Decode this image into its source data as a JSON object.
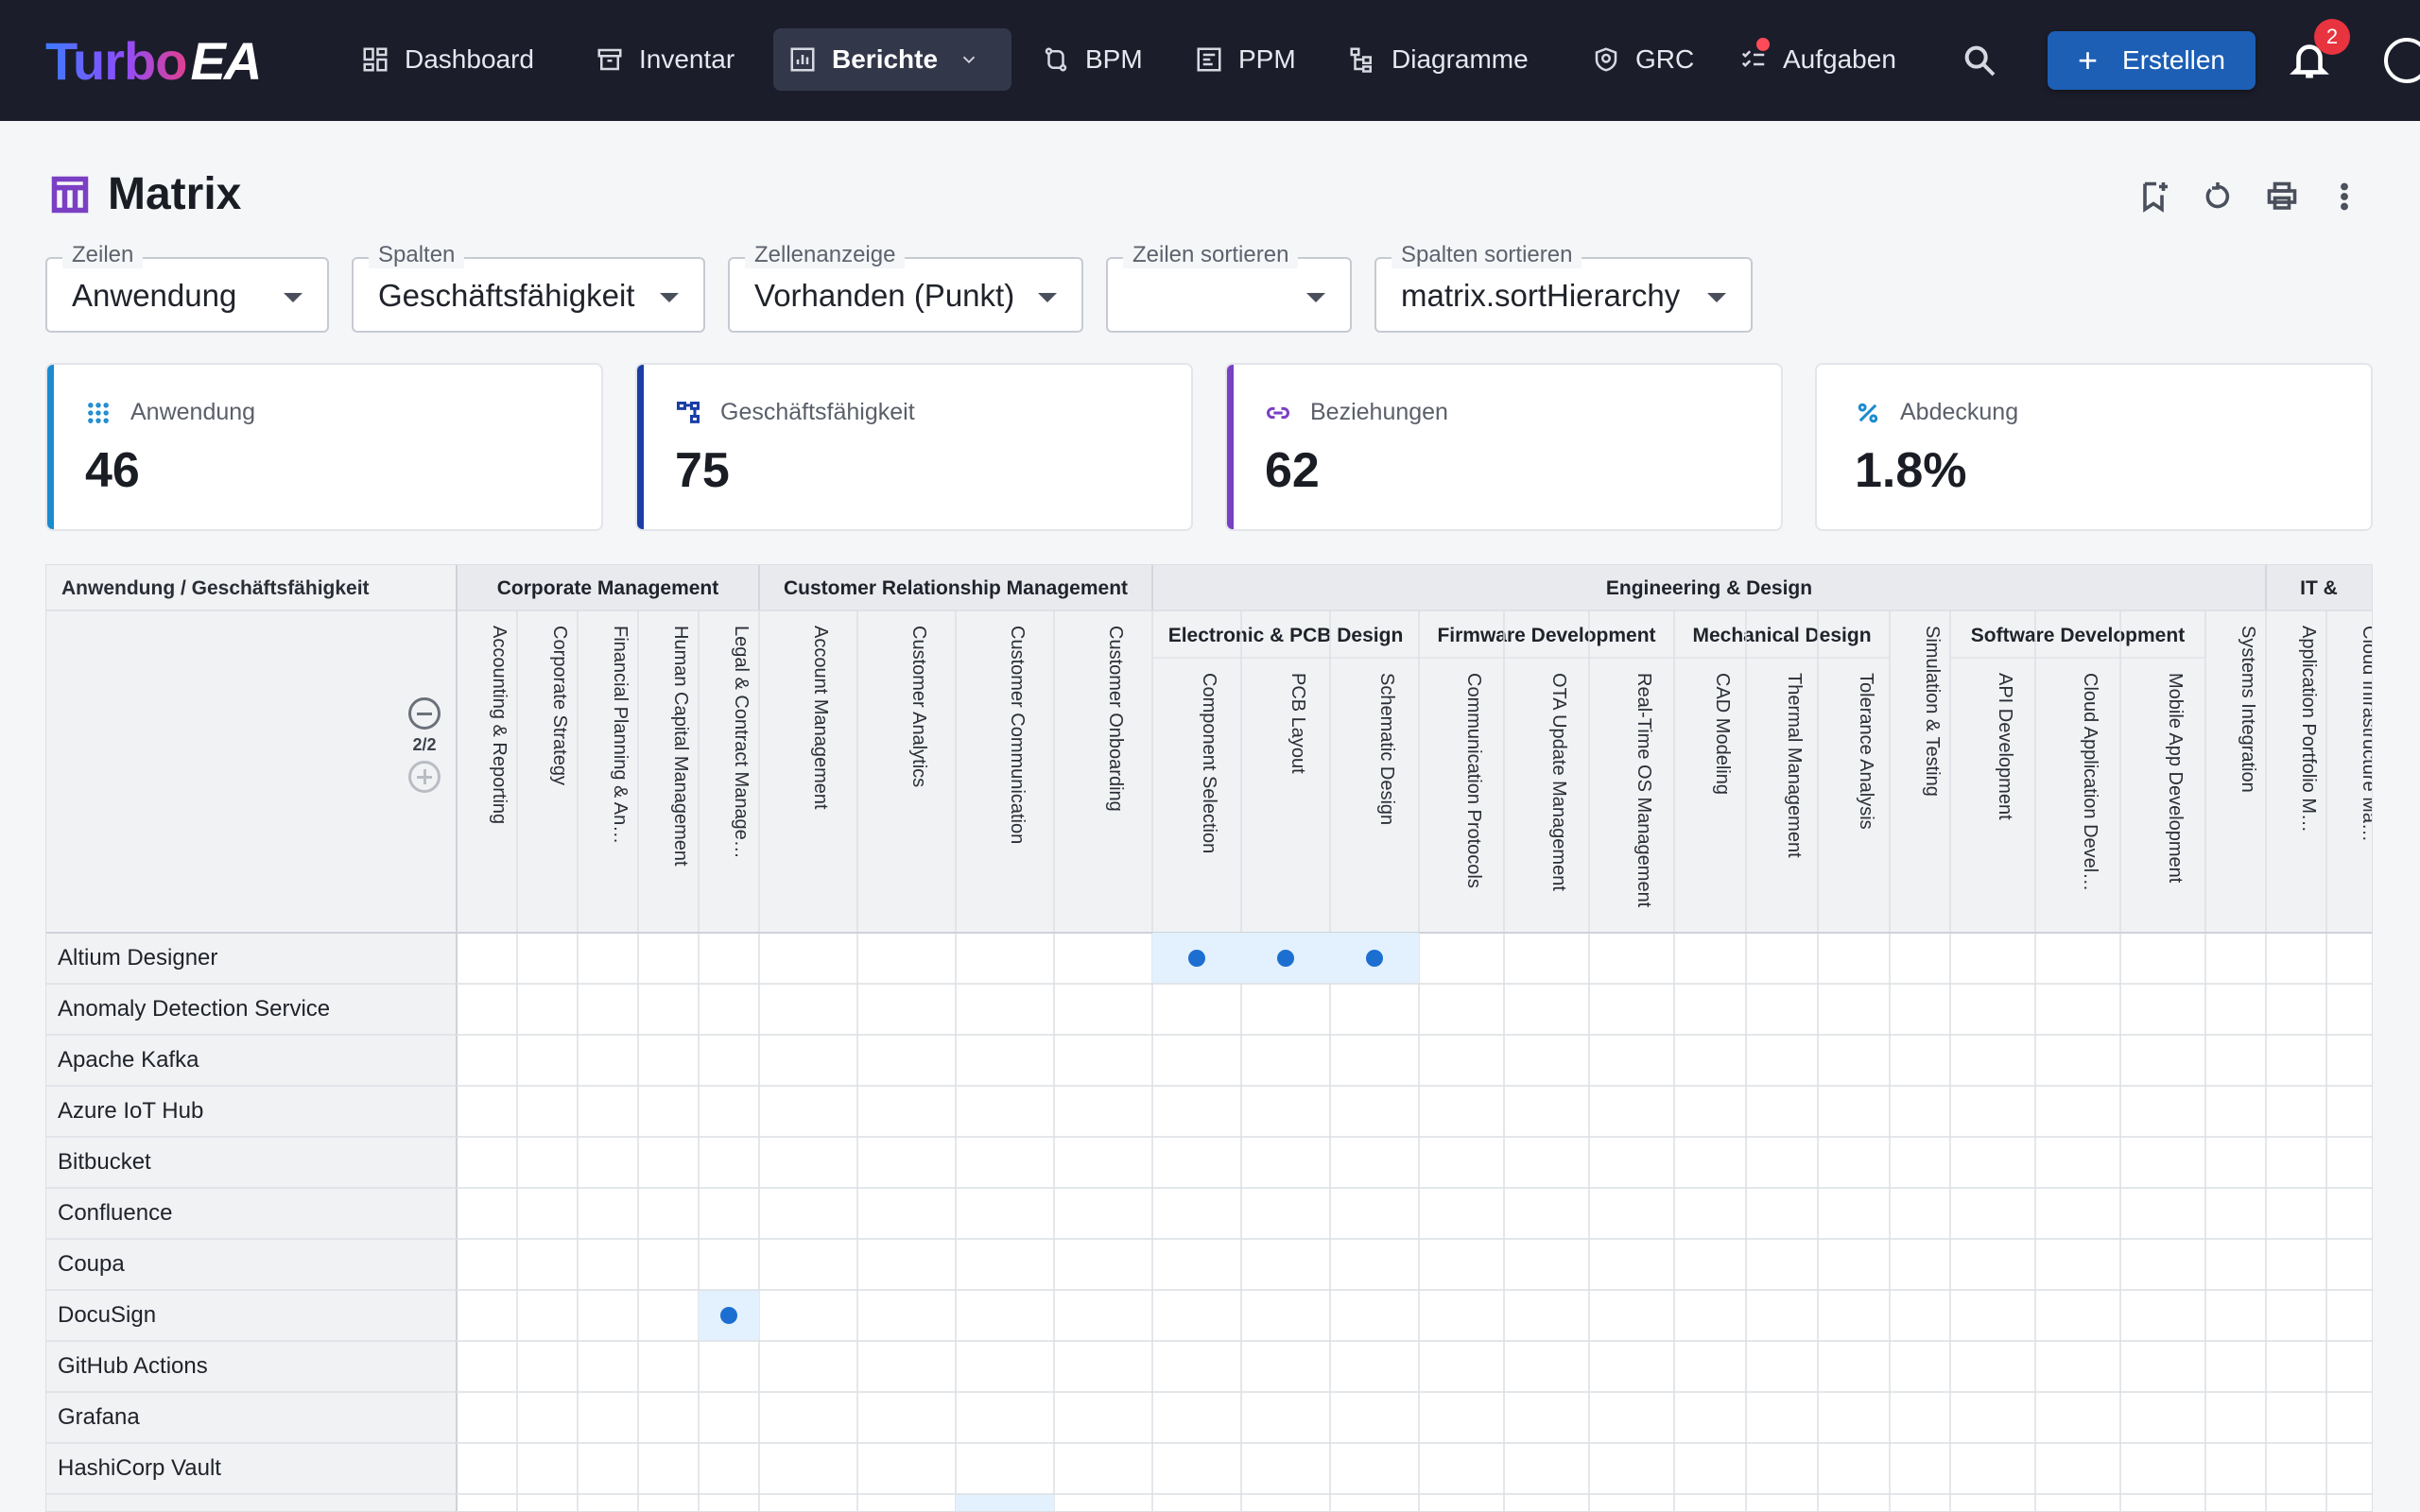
{
  "app": {
    "logo_text": "Turbo",
    "logo_mark": "EA"
  },
  "nav": {
    "items": [
      {
        "label": "Dashboard",
        "icon": "dashboard-icon"
      },
      {
        "label": "Inventar",
        "icon": "archive-icon"
      },
      {
        "label": "Berichte",
        "icon": "chart-icon",
        "active": true
      },
      {
        "label": "BPM",
        "icon": "process-icon"
      },
      {
        "label": "PPM",
        "icon": "project-icon"
      },
      {
        "label": "Diagramme",
        "icon": "diagram-icon"
      },
      {
        "label": "GRC",
        "icon": "shield-icon"
      },
      {
        "label": "Aufgaben",
        "icon": "tasks-icon"
      }
    ],
    "create_label": "Erstellen",
    "notification_count": "2"
  },
  "page": {
    "title": "Matrix"
  },
  "controls": {
    "rows": {
      "legend": "Zeilen",
      "value": "Anwendung"
    },
    "cols": {
      "legend": "Spalten",
      "value": "Geschäftsfähigkeit"
    },
    "cell": {
      "legend": "Zellenanzeige",
      "value": "Vorhanden (Punkt)"
    },
    "rowsort": {
      "legend": "Zeilen sortieren",
      "value": ""
    },
    "colsort": {
      "legend": "Spalten sortieren",
      "value": "matrix.sortHierarchy"
    }
  },
  "kpis": [
    {
      "label": "Anwendung",
      "value": "46",
      "color": "#1b8bd0",
      "icon": "apps-grid-icon"
    },
    {
      "label": "Geschäftsfähigkeit",
      "value": "75",
      "color": "#1a3ea6",
      "icon": "hierarchy-icon"
    },
    {
      "label": "Beziehungen",
      "value": "62",
      "color": "#7b3fc4",
      "icon": "link-icon"
    },
    {
      "label": "Abdeckung",
      "value": "1.8%",
      "color": "#1b8bd0",
      "icon": "percent-icon"
    }
  ],
  "matrix": {
    "corner_label": "Anwendung / Geschäftsfähigkeit",
    "level_indicator": "2/2",
    "level1": [
      {
        "label": "Corporate Management",
        "span": 5
      },
      {
        "label": "Customer Relationship Management",
        "span": 4
      },
      {
        "label": "Engineering & Design",
        "span": 14
      },
      {
        "label": "IT &",
        "span": 2
      }
    ],
    "level2": [
      {
        "label": "Electronic & PCB Design",
        "start": 9,
        "span": 3
      },
      {
        "label": "Firmware Development",
        "start": 12,
        "span": 3
      },
      {
        "label": "Mechanical Design",
        "start": 15,
        "span": 3
      },
      {
        "label": "Software Development",
        "start": 19,
        "span": 3
      }
    ],
    "columns": [
      "Accounting & Reporting",
      "Corporate Strategy",
      "Financial Planning & An…",
      "Human Capital Management",
      "Legal & Contract Manage…",
      "Account Management",
      "Customer Analytics",
      "Customer Communication",
      "Customer Onboarding",
      "Component Selection",
      "PCB Layout",
      "Schematic Design",
      "Communication Protocols",
      "OTA Update Management",
      "Real-Time OS Management",
      "CAD Modeling",
      "Thermal Management",
      "Tolerance Analysis",
      "Simulation & Testing",
      "API Development",
      "Cloud Application Devel…",
      "Mobile App Development",
      "Systems Integration",
      "Application Portfolio M…",
      "Cloud Infrastructure Ma…"
    ],
    "rows": [
      "Altium Designer",
      "Anomaly Detection Service",
      "Apache Kafka",
      "Azure IoT Hub",
      "Bitbucket",
      "Confluence",
      "Coupa",
      "DocuSign",
      "GitHub Actions",
      "Grafana",
      "HashiCorp Vault"
    ],
    "relations": [
      [
        0,
        9
      ],
      [
        0,
        10
      ],
      [
        0,
        11
      ],
      [
        7,
        4
      ]
    ],
    "dot_color": "#1c6fd1",
    "highlight_color": "#e3f0fd"
  }
}
